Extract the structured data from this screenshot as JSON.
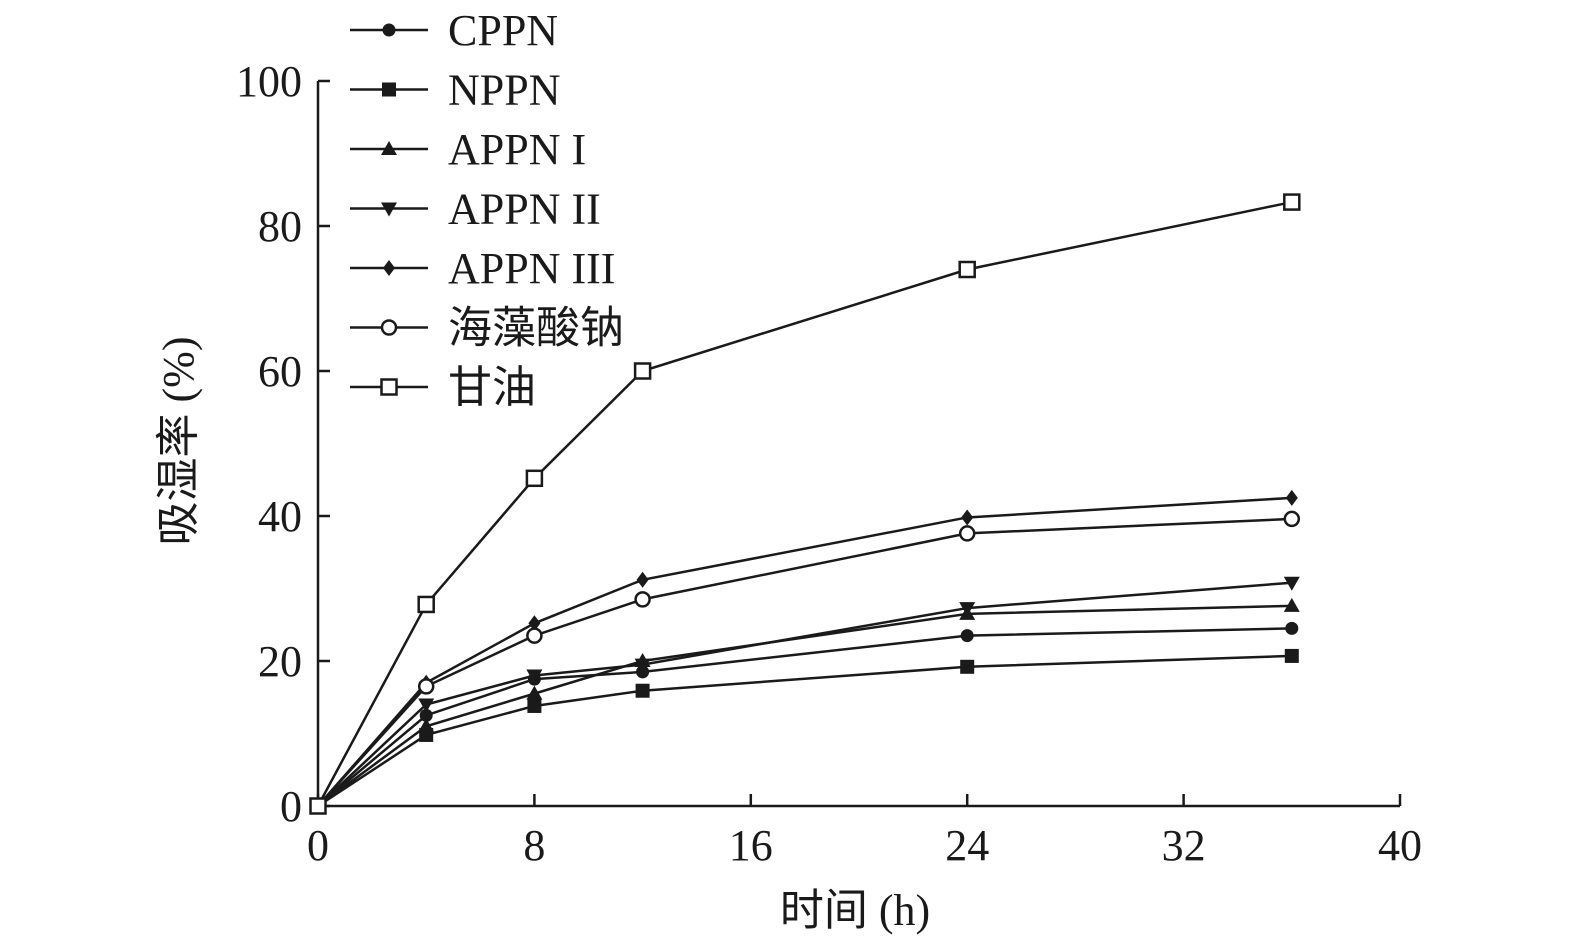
{
  "chart_data": {
    "type": "line",
    "title": "",
    "xlabel": "时间 (h)",
    "ylabel": "吸湿率 (%)",
    "xlim": [
      0,
      40
    ],
    "ylim": [
      0,
      100
    ],
    "xticks": [
      0,
      8,
      16,
      24,
      32,
      40
    ],
    "yticks": [
      0,
      20,
      40,
      60,
      80,
      100
    ],
    "grid": false,
    "legend_position": "top-left",
    "x": [
      0,
      4,
      8,
      12,
      24,
      36
    ],
    "series": [
      {
        "name": "CPPN",
        "marker": "filled-circle",
        "values": [
          0,
          12.5,
          17.5,
          18.5,
          23.5,
          24.5
        ]
      },
      {
        "name": "NPPN",
        "marker": "filled-square",
        "values": [
          0,
          9.8,
          13.8,
          15.9,
          19.2,
          20.7
        ]
      },
      {
        "name": "APPN I",
        "marker": "filled-triangle-up",
        "values": [
          0,
          11,
          15.5,
          20,
          26.5,
          27.6
        ]
      },
      {
        "name": "APPN II",
        "marker": "filled-triangle-down",
        "values": [
          0,
          14,
          18,
          19.5,
          27.3,
          30.8
        ]
      },
      {
        "name": "APPN III",
        "marker": "filled-diamond",
        "values": [
          0,
          17,
          25.2,
          31.2,
          39.8,
          42.5
        ]
      },
      {
        "name": "海藻酸钠",
        "marker": "open-circle",
        "values": [
          0,
          16.5,
          23.5,
          28.5,
          37.6,
          39.6
        ]
      },
      {
        "name": "甘油",
        "marker": "open-square",
        "values": [
          0,
          27.8,
          45.2,
          60,
          74,
          83.3
        ]
      }
    ]
  }
}
